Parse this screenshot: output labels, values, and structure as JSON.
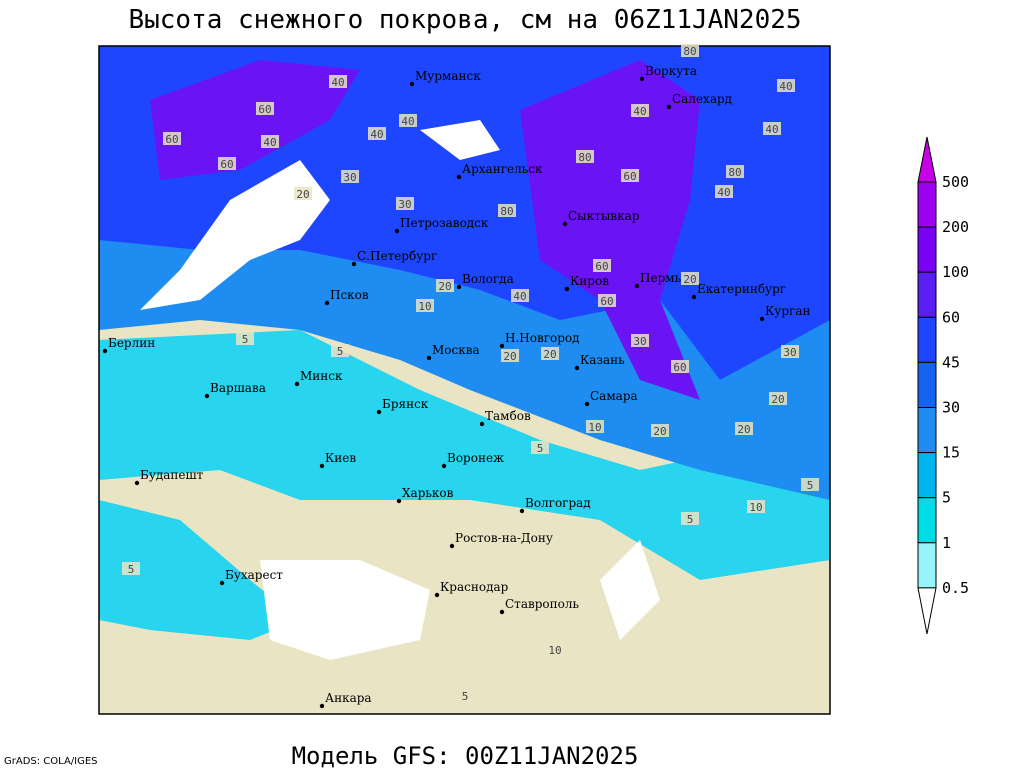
{
  "header": {
    "title": "Высота снежного покрова, см на 06Z11JAN2025",
    "subtitle": "Модель GFS: 00Z11JAN2025",
    "credit": "GrADS: COLA/IGES"
  },
  "cities": [
    "Мурманск",
    "Воркута",
    "Салехард",
    "Архангельск",
    "Петрозаводск",
    "Сыктывкар",
    "С.Петербург",
    "Вологда",
    "Киров",
    "Пермь",
    "Екатеринбург",
    "Курган",
    "Псков",
    "Берлин",
    "Н.Новгород",
    "Москва",
    "Казань",
    "Варшава",
    "Минск",
    "Брянск",
    "Тамбов",
    "Самара",
    "Киев",
    "Воронеж",
    "Будапешт",
    "Харьков",
    "Волгоград",
    "Ростов-на-Дону",
    "Бухарест",
    "Краснодар",
    "Ставрополь",
    "Анкара"
  ],
  "contour_labels": [
    80,
    40,
    60,
    40,
    60,
    60,
    20,
    30,
    40,
    40,
    30,
    80,
    80,
    60,
    40,
    40,
    40,
    80,
    40,
    20,
    40,
    60,
    60,
    20,
    20,
    10,
    5,
    20,
    30,
    60,
    30,
    20,
    20,
    10,
    5,
    5,
    20,
    10,
    5,
    5,
    5,
    10,
    5
  ],
  "legend": {
    "levels": [
      500,
      200,
      100,
      60,
      45,
      30,
      15,
      5,
      1,
      0.5
    ],
    "colors": [
      "#c800e6",
      "#9b00f0",
      "#7a00f5",
      "#5a1ef5",
      "#1e46ff",
      "#1464f0",
      "#1e8cf0",
      "#00b4f0",
      "#00dce6",
      "#96f5fa",
      "#ffffff"
    ]
  }
}
